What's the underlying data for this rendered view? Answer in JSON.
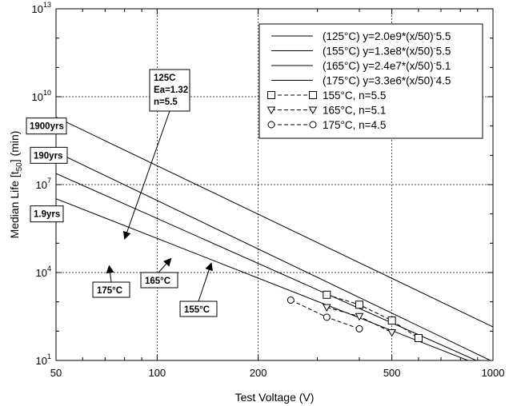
{
  "chart_data": {
    "type": "line",
    "xlabel": "Test Voltage (V)",
    "ylabel_main": "Median Life [t",
    "ylabel_sub": "50",
    "ylabel_end": "] (min)",
    "x_scale": "log",
    "y_scale": "log",
    "xlim": [
      50,
      1000
    ],
    "ylim": [
      10,
      10000000000000
    ],
    "grid": true,
    "legend_placement": "top-right",
    "x_ticks": [
      {
        "value": 50,
        "label": "50"
      },
      {
        "value": 100,
        "label": "100"
      },
      {
        "value": 200,
        "label": "200"
      },
      {
        "value": 500,
        "label": "500"
      },
      {
        "value": 1000,
        "label": "1000"
      }
    ],
    "y_ticks": [
      {
        "value": 10,
        "base": "10",
        "exp": "1"
      },
      {
        "value": 10000,
        "base": "10",
        "exp": "4"
      },
      {
        "value": 10000000,
        "base": "10",
        "exp": "7"
      },
      {
        "value": 10000000000,
        "base": "10",
        "exp": "10"
      },
      {
        "value": 10000000000000,
        "base": "10",
        "exp": "13"
      }
    ],
    "fit_lines": [
      {
        "name": "(125°C) y=2.0e9*(x/50)^-5.5",
        "legend_main": "(125°C) y=2.0e9*(x/50)",
        "legend_exp": "-",
        "legend_tail": "5.5",
        "a": 2000000000.0,
        "n": 5.5
      },
      {
        "name": "(155°C) y=1.3e8*(x/50)^-5.5",
        "legend_main": "(155°C) y=1.3e8*(x/50)",
        "legend_exp": "-",
        "legend_tail": "5.5",
        "a": 130000000.0,
        "n": 5.5
      },
      {
        "name": "(165°C) y=2.4e7*(x/50)^-5.1",
        "legend_main": "(165°C) y=2.4e7*(x/50)",
        "legend_exp": "-",
        "legend_tail": "5.1",
        "a": 24000000.0,
        "n": 5.1
      },
      {
        "name": "(175°C) y=3.3e6*(x/50)^-4.5",
        "legend_main": "(175°C) y=3.3e6*(x/50)",
        "legend_exp": "-",
        "legend_tail": "4.5",
        "a": 3300000.0,
        "n": 4.5
      }
    ],
    "series": [
      {
        "name": "155°C, n=5.5",
        "marker": "square",
        "points": [
          {
            "x": 320,
            "y": 1750
          },
          {
            "x": 400,
            "y": 800
          },
          {
            "x": 500,
            "y": 230
          },
          {
            "x": 600,
            "y": 58
          }
        ]
      },
      {
        "name": "165°C, n=5.1",
        "marker": "triangle-down",
        "points": [
          {
            "x": 320,
            "y": 650
          },
          {
            "x": 400,
            "y": 320
          },
          {
            "x": 500,
            "y": 90
          }
        ]
      },
      {
        "name": "175°C, n=4.5",
        "marker": "circle",
        "points": [
          {
            "x": 250,
            "y": 1150
          },
          {
            "x": 320,
            "y": 300
          },
          {
            "x": 400,
            "y": 120
          }
        ]
      }
    ],
    "annotations": [
      {
        "lines": [
          "125C",
          "Ea=1.32",
          "n=5.5"
        ],
        "arrow_to": {
          "x": 80,
          "y": 140000
        }
      },
      {
        "lines": [
          "175°C"
        ],
        "arrow_to": {
          "x": 72,
          "y": 17000
        }
      },
      {
        "lines": [
          "165°C"
        ],
        "arrow_to": {
          "x": 110,
          "y": 30000
        }
      },
      {
        "lines": [
          "155°C"
        ],
        "arrow_to": {
          "x": 145,
          "y": 21000
        }
      }
    ],
    "side_labels": [
      {
        "text": "1900yrs",
        "y": 1000000000.0
      },
      {
        "text": "190yrs",
        "y": 100000000.0
      },
      {
        "text": "1.9yrs",
        "y": 1000000.0
      }
    ]
  }
}
